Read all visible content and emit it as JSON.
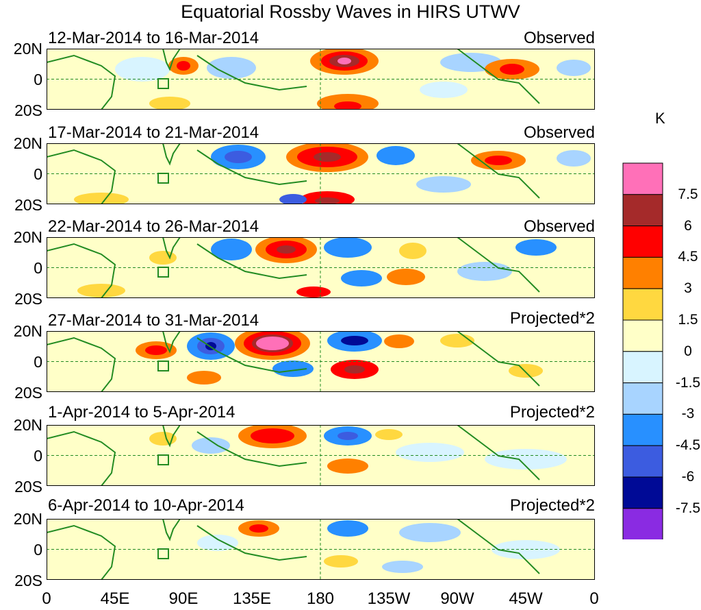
{
  "title": "Equatorial Rossby Waves in HIRS UTWV",
  "panels": [
    {
      "date_range": "12-Mar-2014 to 16-Mar-2014",
      "type": "Observed"
    },
    {
      "date_range": "17-Mar-2014 to 21-Mar-2014",
      "type": "Observed"
    },
    {
      "date_range": "22-Mar-2014 to 26-Mar-2014",
      "type": "Observed"
    },
    {
      "date_range": "27-Mar-2014 to 31-Mar-2014",
      "type": "Projected*2"
    },
    {
      "date_range": "1-Apr-2014 to 5-Apr-2014",
      "type": "Projected*2"
    },
    {
      "date_range": "6-Apr-2014 to 10-Apr-2014",
      "type": "Projected*2"
    }
  ],
  "lat_labels": {
    "north": "20N",
    "equator": "0",
    "south": "20S"
  },
  "lon_labels": [
    "0",
    "45E",
    "90E",
    "135E",
    "180",
    "135W",
    "90W",
    "45W",
    "0"
  ],
  "colorbar": {
    "unit": "K",
    "labels": [
      "7.5",
      "6",
      "4.5",
      "3",
      "1.5",
      "0",
      "-1.5",
      "-3",
      "-4.5",
      "-6",
      "-7.5"
    ],
    "colors": [
      "#ff70b8",
      "#a52a2a",
      "#ff0000",
      "#ff8000",
      "#ffd840",
      "#ffffc8",
      "#d8f4ff",
      "#a8d4ff",
      "#2890ff",
      "#3c5ce0",
      "#000a96",
      "#8a2be2"
    ]
  },
  "colors": {
    "coast": "#228b22",
    "frame": "#000000"
  }
}
